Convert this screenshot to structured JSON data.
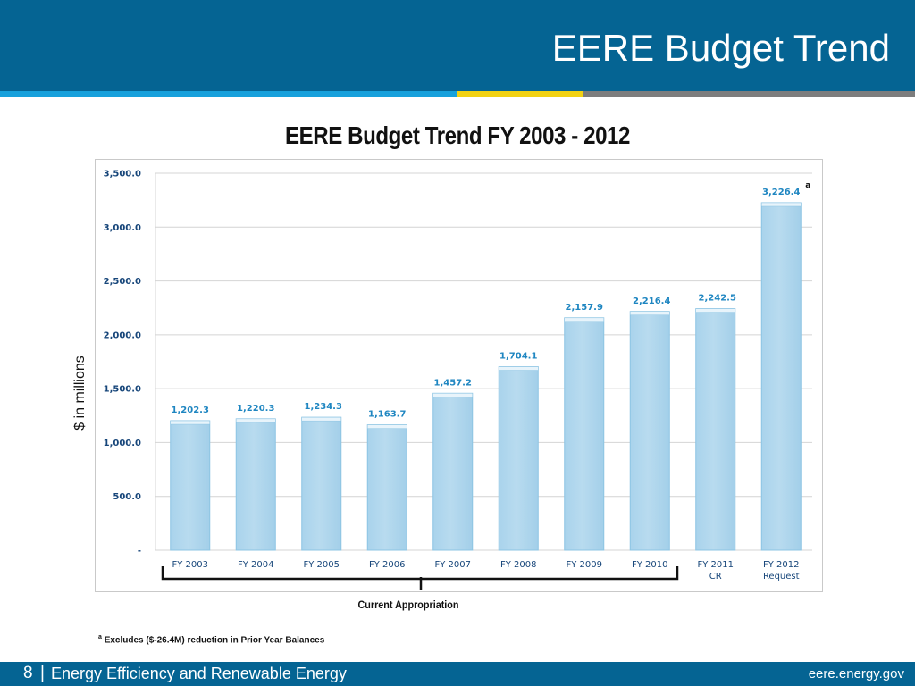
{
  "slide": {
    "title": "EERE Budget Trend",
    "page_number": "8",
    "separator": "|",
    "org_name": "Energy Efficiency and Renewable Energy",
    "website": "eere.energy.gov"
  },
  "annotation": {
    "bracket_label": "Current Appropriation",
    "footnote_marker": "a",
    "footnote_text": "Excludes ($-26.4M)  reduction in Prior Year Balances"
  },
  "chart_data": {
    "type": "bar",
    "title": "EERE Budget Trend FY 2003 - 2012",
    "xlabel": "",
    "ylabel": "$ in millions",
    "ylim": [
      0,
      3500
    ],
    "yticks": [
      0,
      500,
      1000,
      1500,
      2000,
      2500,
      3000,
      3500
    ],
    "ytick_labels": [
      "-",
      "500.0",
      "1,000.0",
      "1,500.0",
      "2,000.0",
      "2,500.0",
      "3,000.0",
      "3,500.0"
    ],
    "grid": true,
    "categories": [
      [
        "FY 2003"
      ],
      [
        "FY 2004"
      ],
      [
        "FY 2005"
      ],
      [
        "FY 2006"
      ],
      [
        "FY 2007"
      ],
      [
        "FY 2008"
      ],
      [
        "FY 2009"
      ],
      [
        "FY 2010"
      ],
      [
        "FY 2011",
        "CR"
      ],
      [
        "FY 2012",
        "Request"
      ]
    ],
    "values": [
      1202.3,
      1220.3,
      1234.3,
      1163.7,
      1457.2,
      1704.1,
      2157.9,
      2216.4,
      2242.5,
      3226.4
    ],
    "value_labels": [
      "1,202.3",
      "1,220.3",
      "1,234.3",
      "1,163.7",
      "1,457.2",
      "1,704.1",
      "2,157.9",
      "2,216.4",
      "2,242.5",
      "3,226.4"
    ],
    "marked_bar_index": 9,
    "bar_color": "#b8dbef",
    "bar_edge_color": "#8cc4e3",
    "label_color": "#1f86c1",
    "axis_text_color": "#17467a"
  }
}
